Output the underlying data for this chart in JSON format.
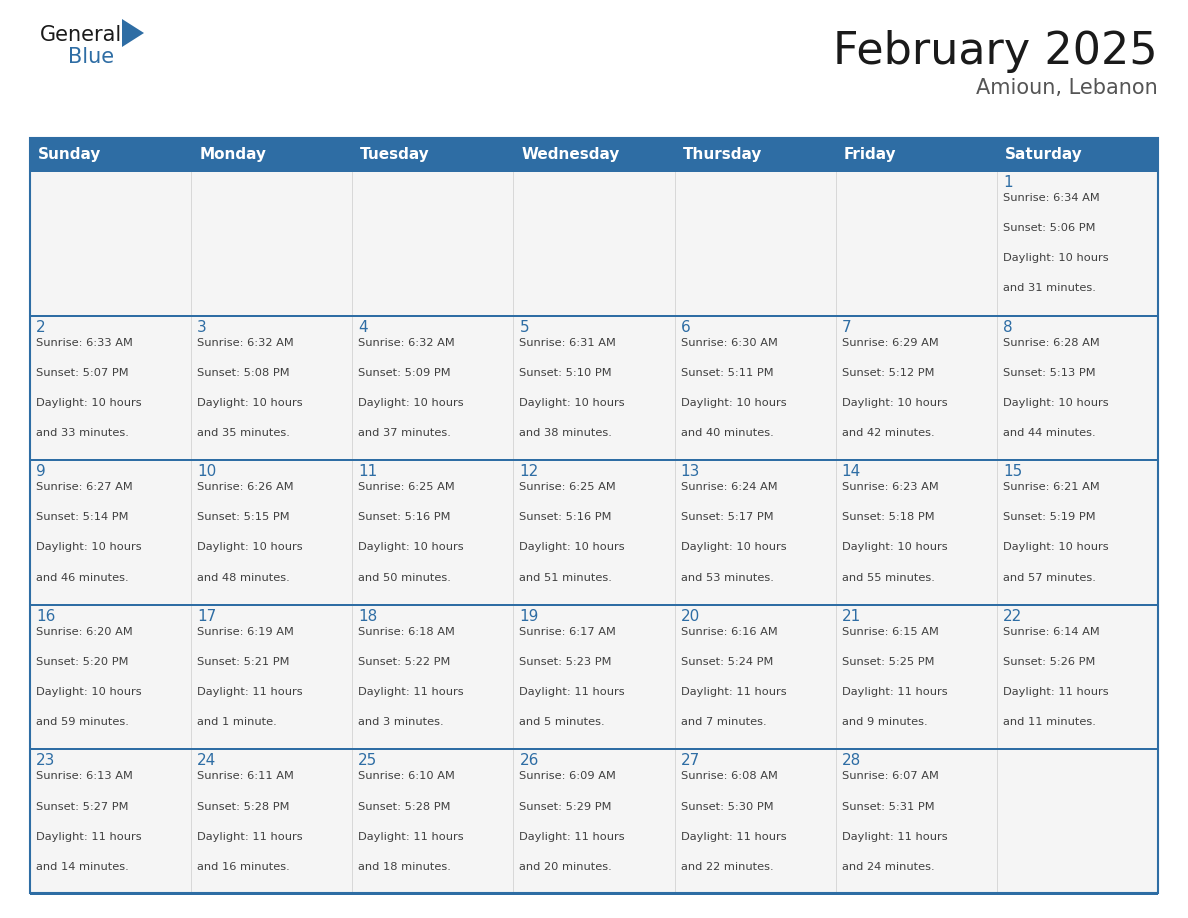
{
  "title": "February 2025",
  "subtitle": "Amioun, Lebanon",
  "header_bg": "#2E6DA4",
  "header_text": "#FFFFFF",
  "cell_bg": "#F5F5F5",
  "border_color": "#2E6DA4",
  "text_color": "#404040",
  "day_number_color": "#2E6DA4",
  "days_of_week": [
    "Sunday",
    "Monday",
    "Tuesday",
    "Wednesday",
    "Thursday",
    "Friday",
    "Saturday"
  ],
  "calendar_data": [
    [
      null,
      null,
      null,
      null,
      null,
      null,
      {
        "day": 1,
        "sunrise": "6:34 AM",
        "sunset": "5:06 PM",
        "daylight": "10 hours\nand 31 minutes."
      }
    ],
    [
      {
        "day": 2,
        "sunrise": "6:33 AM",
        "sunset": "5:07 PM",
        "daylight": "10 hours\nand 33 minutes."
      },
      {
        "day": 3,
        "sunrise": "6:32 AM",
        "sunset": "5:08 PM",
        "daylight": "10 hours\nand 35 minutes."
      },
      {
        "day": 4,
        "sunrise": "6:32 AM",
        "sunset": "5:09 PM",
        "daylight": "10 hours\nand 37 minutes."
      },
      {
        "day": 5,
        "sunrise": "6:31 AM",
        "sunset": "5:10 PM",
        "daylight": "10 hours\nand 38 minutes."
      },
      {
        "day": 6,
        "sunrise": "6:30 AM",
        "sunset": "5:11 PM",
        "daylight": "10 hours\nand 40 minutes."
      },
      {
        "day": 7,
        "sunrise": "6:29 AM",
        "sunset": "5:12 PM",
        "daylight": "10 hours\nand 42 minutes."
      },
      {
        "day": 8,
        "sunrise": "6:28 AM",
        "sunset": "5:13 PM",
        "daylight": "10 hours\nand 44 minutes."
      }
    ],
    [
      {
        "day": 9,
        "sunrise": "6:27 AM",
        "sunset": "5:14 PM",
        "daylight": "10 hours\nand 46 minutes."
      },
      {
        "day": 10,
        "sunrise": "6:26 AM",
        "sunset": "5:15 PM",
        "daylight": "10 hours\nand 48 minutes."
      },
      {
        "day": 11,
        "sunrise": "6:25 AM",
        "sunset": "5:16 PM",
        "daylight": "10 hours\nand 50 minutes."
      },
      {
        "day": 12,
        "sunrise": "6:25 AM",
        "sunset": "5:16 PM",
        "daylight": "10 hours\nand 51 minutes."
      },
      {
        "day": 13,
        "sunrise": "6:24 AM",
        "sunset": "5:17 PM",
        "daylight": "10 hours\nand 53 minutes."
      },
      {
        "day": 14,
        "sunrise": "6:23 AM",
        "sunset": "5:18 PM",
        "daylight": "10 hours\nand 55 minutes."
      },
      {
        "day": 15,
        "sunrise": "6:21 AM",
        "sunset": "5:19 PM",
        "daylight": "10 hours\nand 57 minutes."
      }
    ],
    [
      {
        "day": 16,
        "sunrise": "6:20 AM",
        "sunset": "5:20 PM",
        "daylight": "10 hours\nand 59 minutes."
      },
      {
        "day": 17,
        "sunrise": "6:19 AM",
        "sunset": "5:21 PM",
        "daylight": "11 hours\nand 1 minute."
      },
      {
        "day": 18,
        "sunrise": "6:18 AM",
        "sunset": "5:22 PM",
        "daylight": "11 hours\nand 3 minutes."
      },
      {
        "day": 19,
        "sunrise": "6:17 AM",
        "sunset": "5:23 PM",
        "daylight": "11 hours\nand 5 minutes."
      },
      {
        "day": 20,
        "sunrise": "6:16 AM",
        "sunset": "5:24 PM",
        "daylight": "11 hours\nand 7 minutes."
      },
      {
        "day": 21,
        "sunrise": "6:15 AM",
        "sunset": "5:25 PM",
        "daylight": "11 hours\nand 9 minutes."
      },
      {
        "day": 22,
        "sunrise": "6:14 AM",
        "sunset": "5:26 PM",
        "daylight": "11 hours\nand 11 minutes."
      }
    ],
    [
      {
        "day": 23,
        "sunrise": "6:13 AM",
        "sunset": "5:27 PM",
        "daylight": "11 hours\nand 14 minutes."
      },
      {
        "day": 24,
        "sunrise": "6:11 AM",
        "sunset": "5:28 PM",
        "daylight": "11 hours\nand 16 minutes."
      },
      {
        "day": 25,
        "sunrise": "6:10 AM",
        "sunset": "5:28 PM",
        "daylight": "11 hours\nand 18 minutes."
      },
      {
        "day": 26,
        "sunrise": "6:09 AM",
        "sunset": "5:29 PM",
        "daylight": "11 hours\nand 20 minutes."
      },
      {
        "day": 27,
        "sunrise": "6:08 AM",
        "sunset": "5:30 PM",
        "daylight": "11 hours\nand 22 minutes."
      },
      {
        "day": 28,
        "sunrise": "6:07 AM",
        "sunset": "5:31 PM",
        "daylight": "11 hours\nand 24 minutes."
      },
      null
    ]
  ],
  "fig_width": 11.88,
  "fig_height": 9.18,
  "title_fontsize": 32,
  "subtitle_fontsize": 15,
  "dow_fontsize": 11,
  "day_num_fontsize": 11,
  "cell_text_fontsize": 8.2,
  "logo_general_fontsize": 15,
  "logo_blue_fontsize": 15
}
